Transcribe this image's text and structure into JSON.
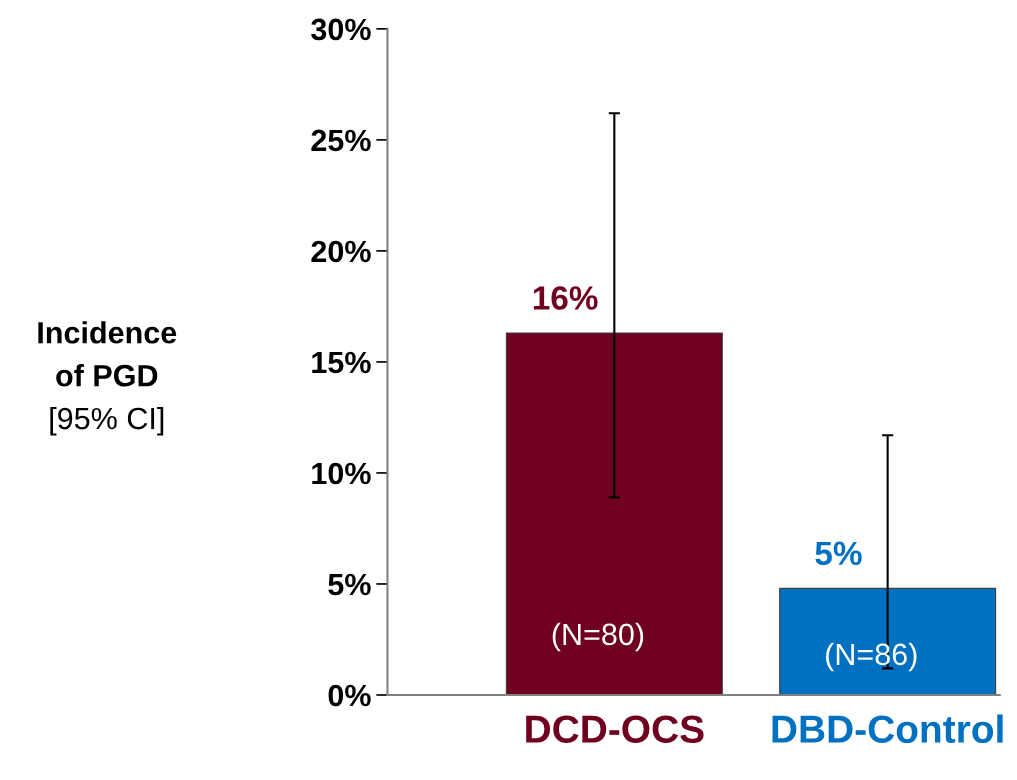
{
  "chart_data": {
    "type": "bar",
    "categories": [
      "DCD-OCS",
      "DBD-Control"
    ],
    "values": [
      16.3,
      4.8
    ],
    "colors": [
      "#6f0020",
      "#0070c0"
    ],
    "errors": [
      [
        8.9,
        26.2
      ],
      [
        1.2,
        11.7
      ]
    ],
    "value_labels": [
      "16%",
      "5%"
    ],
    "ylabel": "Incidence\nof PGD\n[95% CI]",
    "ylim": [
      0,
      30
    ],
    "yticks": [
      {
        "value": 0,
        "label": "0%"
      },
      {
        "value": 5,
        "label": "5%"
      },
      {
        "value": 10,
        "label": "10%"
      },
      {
        "value": 15,
        "label": "15%"
      },
      {
        "value": 20,
        "label": "20%"
      },
      {
        "value": 25,
        "label": "25%"
      },
      {
        "value": 30,
        "label": "30%"
      }
    ],
    "annotations": [
      "(N=80)",
      "(N=86)"
    ],
    "grid": false,
    "legend": false
  }
}
